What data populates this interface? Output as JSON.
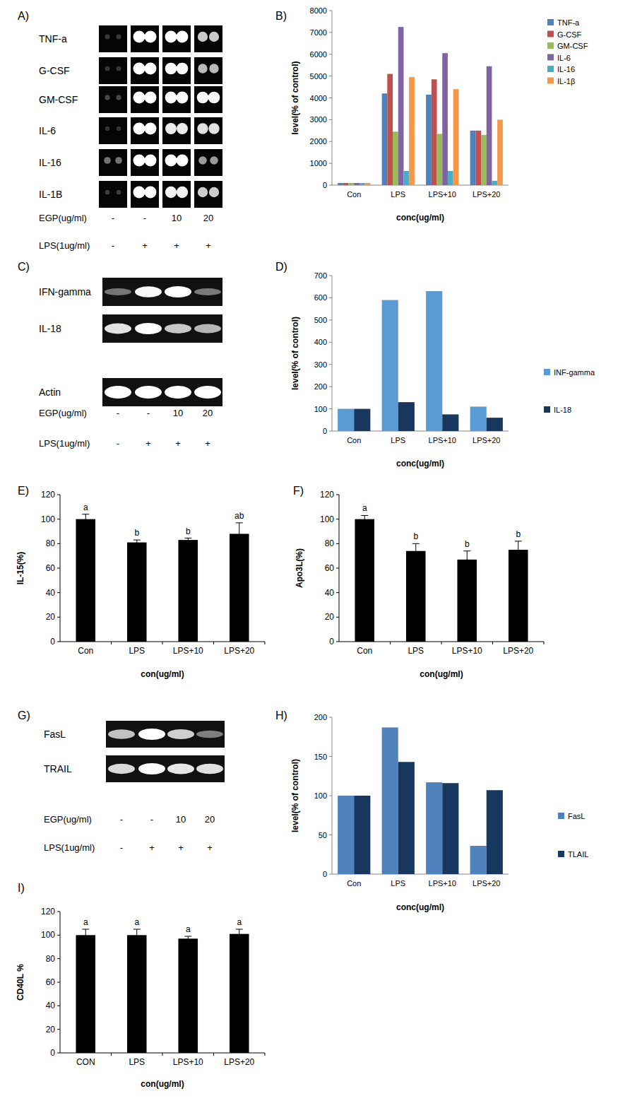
{
  "chart_data": [
    {
      "type": "bar",
      "title": "B)",
      "categories": [
        "Con",
        "LPS",
        "LPS+10",
        "LPS+20"
      ],
      "x_label": "conc(ug/ml)",
      "y_label": "level(% of control)",
      "series": [
        {
          "name": "TNF-a",
          "color": "#4f81bd",
          "values": [
            100,
            4200,
            4150,
            2500
          ]
        },
        {
          "name": "G-CSF",
          "color": "#c0504d",
          "values": [
            100,
            5100,
            4850,
            2500
          ]
        },
        {
          "name": "GM-CSF",
          "color": "#9bbb59",
          "values": [
            100,
            2450,
            2350,
            2300
          ]
        },
        {
          "name": "IL-6",
          "color": "#8064a2",
          "values": [
            100,
            7250,
            6050,
            5450
          ]
        },
        {
          "name": "IL-16",
          "color": "#4bacc6",
          "values": [
            100,
            650,
            650,
            200
          ]
        },
        {
          "name": "IL-1β",
          "color": "#f79646",
          "values": [
            100,
            4950,
            4400,
            3000
          ]
        }
      ],
      "ylim": [
        0,
        8000
      ],
      "yticks": [
        0,
        1000,
        2000,
        3000,
        4000,
        5000,
        6000,
        7000,
        8000
      ],
      "grid": false,
      "legend": "right"
    },
    {
      "type": "bar",
      "title": "D)",
      "categories": [
        "Con",
        "LPS",
        "LPS+10",
        "LPS+20"
      ],
      "x_label": "conc(ug/ml)",
      "y_label": "level(% of control)",
      "series": [
        {
          "name": "INF-gamma",
          "color": "#5b9bd5",
          "values": [
            100,
            590,
            630,
            110
          ]
        },
        {
          "name": "IL-18",
          "color": "#17375e",
          "values": [
            100,
            130,
            75,
            60
          ]
        }
      ],
      "ylim": [
        0,
        700
      ],
      "yticks": [
        0,
        100,
        200,
        300,
        400,
        500,
        600,
        700
      ],
      "grid": false,
      "legend": "right"
    },
    {
      "type": "bar",
      "title": "E)",
      "categories": [
        "Con",
        "LPS",
        "LPS+10",
        "LPS+20"
      ],
      "x_label": "con(ug/ml)",
      "y_label": "IL-15(%)",
      "values": [
        100,
        81,
        83,
        88
      ],
      "errors": [
        4,
        2,
        1.5,
        9
      ],
      "annotations": [
        "a",
        "b",
        "b",
        "ab"
      ],
      "color": "#000000",
      "ylim": [
        0,
        120
      ],
      "yticks": [
        0,
        20,
        40,
        60,
        80,
        100,
        120
      ],
      "grid": false
    },
    {
      "type": "bar",
      "title": "F)",
      "categories": [
        "Con",
        "LPS",
        "LPS+10",
        "LPS+20"
      ],
      "x_label": "con(ug/ml)",
      "y_label": "Apo3L(%)",
      "values": [
        100,
        74,
        67,
        75
      ],
      "errors": [
        3,
        6,
        7,
        7
      ],
      "annotations": [
        "a",
        "b",
        "b",
        "b"
      ],
      "color": "#000000",
      "ylim": [
        0,
        120
      ],
      "yticks": [
        0,
        20,
        40,
        60,
        80,
        100,
        120
      ],
      "grid": false
    },
    {
      "type": "bar",
      "title": "H)",
      "categories": [
        "Con",
        "LPS",
        "LPS+10",
        "LPS+20"
      ],
      "x_label": "conc(ug/ml)",
      "y_label": "level(% of control)",
      "series": [
        {
          "name": "FasL",
          "color": "#4f81bd",
          "values": [
            100,
            187,
            117,
            36
          ]
        },
        {
          "name": "TLAIL",
          "color": "#17375e",
          "values": [
            100,
            143,
            116,
            107
          ]
        }
      ],
      "ylim": [
        0,
        200
      ],
      "yticks": [
        0,
        50,
        100,
        150,
        200
      ],
      "grid": false,
      "legend": "right"
    },
    {
      "type": "bar",
      "title": "I)",
      "categories": [
        "CON",
        "LPS",
        "LPS+10",
        "LPS+20"
      ],
      "x_label": "con(ug/ml)",
      "y_label": "CD40L %",
      "values": [
        100,
        100,
        97,
        101
      ],
      "errors": [
        5,
        5,
        2,
        4
      ],
      "annotations": [
        "a",
        "a",
        "a",
        "a"
      ],
      "color": "#000000",
      "ylim": [
        0,
        120
      ],
      "yticks": [
        0,
        20,
        40,
        60,
        80,
        100,
        120
      ],
      "grid": false
    }
  ],
  "blots": [
    {
      "title": "A)",
      "rows": [
        "TNF-a",
        "G-CSF",
        "GM-CSF",
        "IL-6",
        "IL-16",
        "IL-1B"
      ],
      "treatments": [
        {
          "name": "EGP(ug/ml)",
          "levels": [
            "-",
            "-",
            "10",
            "20"
          ]
        },
        {
          "name": "LPS(1ug/ml)",
          "levels": [
            "-",
            "+",
            "+",
            "+"
          ]
        }
      ]
    },
    {
      "title": "C)",
      "rows": [
        "IFN-gamma",
        "IL-18",
        "Actin"
      ],
      "treatments": [
        {
          "name": "EGP(ug/ml)",
          "levels": [
            "-",
            "-",
            "10",
            "20"
          ]
        },
        {
          "name": "LPS(1ug/ml)",
          "levels": [
            "-",
            "+",
            "+",
            "+"
          ]
        }
      ]
    },
    {
      "title": "G)",
      "rows": [
        "FasL",
        "TRAIL"
      ],
      "treatments": [
        {
          "name": "EGP(ug/ml)",
          "levels": [
            "-",
            "-",
            "10",
            "20"
          ]
        },
        {
          "name": "LPS(1ug/ml)",
          "levels": [
            "-",
            "+",
            "+",
            "+"
          ]
        }
      ]
    }
  ]
}
